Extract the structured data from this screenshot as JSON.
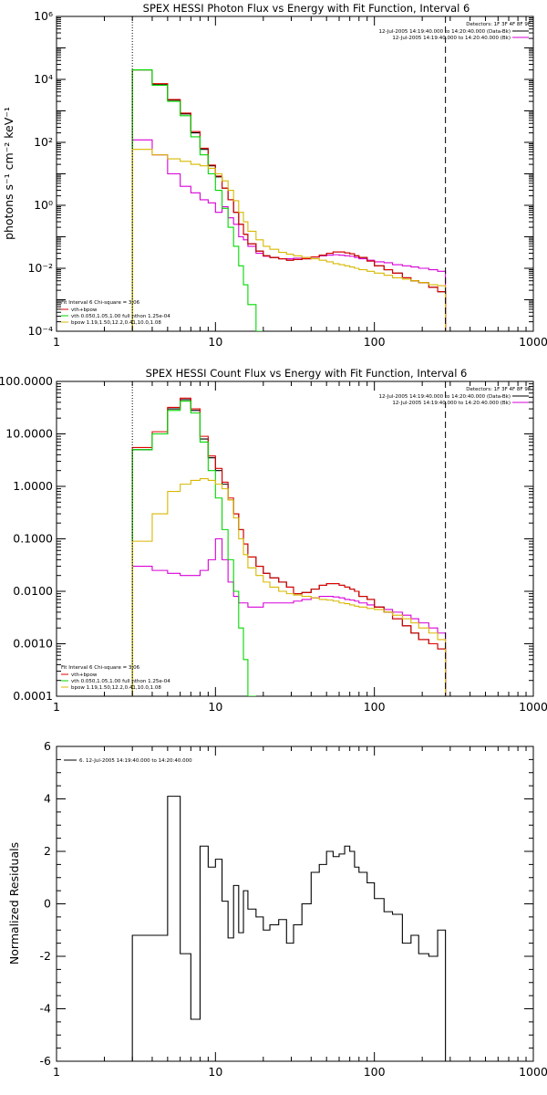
{
  "colors": {
    "data": "#000000",
    "total": "#e00000",
    "vth": "#00d800",
    "bpow": "#d8b800",
    "vth_plus_bpow": "#d800d8",
    "background": "#d800d8"
  },
  "panels": {
    "photon": {
      "title": "SPEX HESSI Photon Flux vs Energy with Fit Function, Interval 6",
      "ylabel": "photons s⁻¹ cm⁻² keV⁻¹",
      "legend_header": "Detectors: 1F 3F 4F 8F 9F",
      "legend_data": "12-Jul-2005 14:19:40.000 to 14:20:40.000 (Data-Bk)",
      "legend_bk": "12-Jul-2005 14:19:40.000 to 14:20:40.000 (Bk)",
      "fit_header": "Fit Interval  6   Chi-square = 3.06",
      "fit_items": [
        "vth+bpow",
        "vth 0.050,1.05,1.00  full nthon 1.25e-04",
        "bpow 1.19,1.50,12.2,0.41,10.0,1.08"
      ],
      "y_ticks": [
        "10⁻⁴",
        "10⁻²",
        "10⁰",
        "10²",
        "10⁴",
        "10⁶"
      ],
      "x_ticks": [
        "1",
        "10",
        "100",
        "1000"
      ]
    },
    "count": {
      "title": "SPEX HESSI Count Flux vs Energy with Fit Function, Interval 6",
      "ylabel": "",
      "legend_header": "Detectors: 1F 3F 4F 8F 9F",
      "legend_data": "12-Jul-2005 14:19:40.000 to 14:20:40.000 (Data-Bk)",
      "legend_bk": "12-Jul-2005 14:19:40.000 to 14:20:40.000 (Bk)",
      "fit_header": "Fit Interval  6   Chi-square = 3.06",
      "fit_items": [
        "vth+bpow",
        "vth 0.050,1.05,1.00  full nthon 1.25e-04",
        "bpow 1.19,1.50,12.2,0.41,10.0,1.08"
      ],
      "y_ticks": [
        "0.0001",
        "0.0010",
        "0.0100",
        "0.1000",
        "1.0000",
        "10.0000",
        "100.0000"
      ],
      "x_ticks": [
        "1",
        "10",
        "100",
        "1000"
      ]
    },
    "residual": {
      "ylabel": "Normalized Residuals",
      "legend": "6. 12-Jul-2005 14:19:40.000 to 14:20:40.000",
      "y_ticks": [
        "-6",
        "-4",
        "-2",
        "0",
        "2",
        "4",
        "6"
      ],
      "x_ticks": [
        "1",
        "10",
        "100",
        "1000"
      ]
    }
  },
  "chart_data": [
    {
      "type": "line",
      "title": "SPEX HESSI Photon Flux vs Energy with Fit Function, Interval 6",
      "xlabel": "",
      "ylabel": "photons s⁻¹ cm⁻² keV⁻¹",
      "xscale": "log",
      "yscale": "log",
      "xlim": [
        1,
        1000
      ],
      "ylim": [
        0.0001,
        1000000
      ],
      "fit_range": [
        3,
        280
      ],
      "edges": [
        3,
        4,
        5,
        6,
        7,
        8,
        9,
        10,
        11,
        12,
        13,
        14,
        15,
        16,
        18,
        20,
        22,
        25,
        28,
        31,
        35,
        40,
        45,
        50,
        55,
        60,
        65,
        70,
        75,
        80,
        90,
        100,
        115,
        130,
        150,
        170,
        190,
        220,
        250,
        280
      ],
      "series": [
        {
          "name": "Data-Bk",
          "values": [
            20000,
            7000,
            2200,
            800,
            200,
            60,
            18,
            8,
            3.5,
            1.5,
            0.6,
            0.25,
            0.12,
            0.06,
            0.035,
            0.025,
            0.022,
            0.02,
            0.018,
            0.019,
            0.02,
            0.023,
            0.026,
            0.03,
            0.033,
            0.033,
            0.031,
            0.029,
            0.025,
            0.022,
            0.017,
            0.012,
            0.009,
            0.007,
            0.005,
            0.004,
            0.0035,
            0.0025,
            0.0018
          ]
        },
        {
          "name": "Bk",
          "values": [
            120,
            40,
            10,
            4,
            2.5,
            1.5,
            1.2,
            0.6,
            0.9,
            0.4,
            0.25,
            0.1,
            0.08,
            0.05,
            0.03,
            0.024,
            0.022,
            0.02,
            0.02,
            0.021,
            0.022,
            0.023,
            0.025,
            0.026,
            0.027,
            0.026,
            0.025,
            0.024,
            0.022,
            0.02,
            0.018,
            0.016,
            0.015,
            0.013,
            0.012,
            0.011,
            0.01,
            0.009,
            0.008
          ]
        },
        {
          "name": "vth+bpow",
          "values": [
            20000,
            7300,
            2300,
            850,
            220,
            65,
            19,
            8.5,
            3.5,
            1.5,
            0.6,
            0.25,
            0.12,
            0.06,
            0.035,
            0.025,
            0.022,
            0.02,
            0.018,
            0.019,
            0.02,
            0.023,
            0.026,
            0.03,
            0.033,
            0.033,
            0.031,
            0.029,
            0.025,
            0.022,
            0.017,
            0.012,
            0.009,
            0.007,
            0.005,
            0.004,
            0.0035,
            0.0025,
            0.0018
          ]
        },
        {
          "name": "vth 0.050,1.05,1.00  full nthon 1.25e-04",
          "values": [
            20000,
            6500,
            2000,
            700,
            150,
            40,
            10,
            3,
            0.8,
            0.2,
            0.05,
            0.012,
            0.003,
            0.0007,
            0.0001
          ]
        },
        {
          "name": "bpow 1.19,1.50,12.2,0.41,10.0,1.08",
          "values": [
            60,
            40,
            30,
            25,
            20,
            18,
            15,
            10,
            6,
            3,
            1.4,
            0.6,
            0.3,
            0.15,
            0.08,
            0.05,
            0.04,
            0.032,
            0.028,
            0.025,
            0.022,
            0.02,
            0.018,
            0.016,
            0.014,
            0.013,
            0.012,
            0.011,
            0.01,
            0.009,
            0.008,
            0.007,
            0.006,
            0.005,
            0.0045,
            0.004,
            0.0035,
            0.003,
            0.0028
          ]
        }
      ]
    },
    {
      "type": "line",
      "title": "SPEX HESSI Count Flux vs Energy with Fit Function, Interval 6",
      "xlabel": "",
      "ylabel": "",
      "xscale": "log",
      "yscale": "log",
      "xlim": [
        1,
        1000
      ],
      "ylim": [
        0.0001,
        100
      ],
      "fit_range": [
        3,
        280
      ],
      "edges": [
        3,
        4,
        5,
        6,
        7,
        8,
        9,
        10,
        11,
        12,
        13,
        14,
        15,
        16,
        18,
        20,
        22,
        25,
        28,
        31,
        35,
        40,
        45,
        50,
        55,
        60,
        65,
        70,
        75,
        80,
        90,
        100,
        115,
        130,
        150,
        170,
        190,
        220,
        250,
        280
      ],
      "series": [
        {
          "name": "Data-Bk",
          "values": [
            5,
            10,
            30,
            45,
            28,
            8,
            3.5,
            2,
            1.1,
            0.55,
            0.3,
            0.15,
            0.08,
            0.045,
            0.03,
            0.022,
            0.018,
            0.015,
            0.012,
            0.009,
            0.0095,
            0.011,
            0.013,
            0.014,
            0.014,
            0.013,
            0.012,
            0.011,
            0.01,
            0.008,
            0.007,
            0.005,
            0.004,
            0.003,
            0.0022,
            0.0016,
            0.0012,
            0.001,
            0.0008
          ]
        },
        {
          "name": "Bk",
          "values": [
            0.03,
            0.025,
            0.022,
            0.02,
            0.02,
            0.025,
            0.04,
            0.1,
            0.04,
            0.015,
            0.008,
            0.006,
            0.006,
            0.005,
            0.005,
            0.006,
            0.006,
            0.006,
            0.006,
            0.0065,
            0.007,
            0.0075,
            0.008,
            0.008,
            0.0078,
            0.0075,
            0.007,
            0.0068,
            0.0065,
            0.006,
            0.0055,
            0.005,
            0.0045,
            0.004,
            0.0035,
            0.003,
            0.0025,
            0.002,
            0.0016
          ]
        },
        {
          "name": "vth+bpow",
          "values": [
            5.5,
            11,
            32,
            48,
            30,
            9,
            3.8,
            2.2,
            1.2,
            0.6,
            0.3,
            0.15,
            0.08,
            0.045,
            0.03,
            0.022,
            0.018,
            0.015,
            0.012,
            0.009,
            0.0095,
            0.011,
            0.013,
            0.014,
            0.014,
            0.013,
            0.012,
            0.011,
            0.01,
            0.008,
            0.007,
            0.005,
            0.004,
            0.003,
            0.0022,
            0.0016,
            0.0012,
            0.001,
            0.0008
          ]
        },
        {
          "name": "vth 0.050,1.05,1.00  full nthon 1.25e-04",
          "values": [
            5,
            10,
            28,
            42,
            25,
            7,
            2,
            0.6,
            0.15,
            0.04,
            0.01,
            0.002,
            0.0005,
            0.0001
          ]
        },
        {
          "name": "bpow 1.19,1.50,12.2,0.41,10.0,1.08",
          "values": [
            0.09,
            0.3,
            0.8,
            1.1,
            1.3,
            1.4,
            1.3,
            1.1,
            0.9,
            0.55,
            0.25,
            0.1,
            0.05,
            0.028,
            0.02,
            0.015,
            0.012,
            0.01,
            0.009,
            0.0085,
            0.008,
            0.0075,
            0.007,
            0.0068,
            0.0065,
            0.006,
            0.0058,
            0.0055,
            0.0052,
            0.005,
            0.0047,
            0.0045,
            0.004,
            0.0035,
            0.003,
            0.0025,
            0.002,
            0.0016,
            0.0012
          ]
        }
      ]
    },
    {
      "type": "line",
      "title": "",
      "xlabel": "",
      "ylabel": "Normalized Residuals",
      "xscale": "log",
      "yscale": "linear",
      "xlim": [
        1,
        1000
      ],
      "ylim": [
        -6,
        6
      ],
      "edges": [
        3,
        4,
        5,
        6,
        7,
        8,
        9,
        10,
        11,
        12,
        13,
        14,
        15,
        16,
        18,
        20,
        22,
        25,
        28,
        31,
        35,
        40,
        45,
        50,
        55,
        60,
        65,
        70,
        75,
        80,
        90,
        100,
        115,
        130,
        150,
        170,
        190,
        220,
        250,
        280
      ],
      "series": [
        {
          "name": "6. 12-Jul-2005 14:19:40.000 to 14:20:40.000",
          "values": [
            -1.2,
            -1.2,
            4.1,
            -1.9,
            -4.4,
            2.2,
            1.4,
            1.7,
            0.1,
            -1.3,
            0.7,
            -1.1,
            0.5,
            -0.2,
            -0.5,
            -1.0,
            -0.8,
            -0.6,
            -1.5,
            -0.8,
            0.0,
            1.2,
            1.5,
            2.0,
            1.8,
            1.9,
            2.2,
            2.0,
            1.4,
            1.2,
            0.8,
            0.2,
            -0.3,
            -0.4,
            -1.5,
            -1.2,
            -1.9,
            -2.0,
            -1.0
          ]
        }
      ]
    }
  ]
}
